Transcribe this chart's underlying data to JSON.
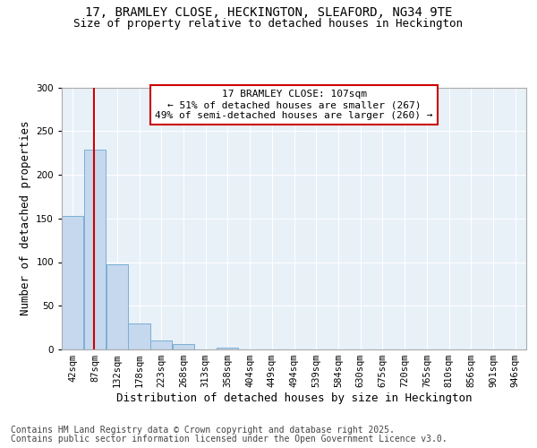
{
  "title_line1": "17, BRAMLEY CLOSE, HECKINGTON, SLEAFORD, NG34 9TE",
  "title_line2": "Size of property relative to detached houses in Heckington",
  "xlabel": "Distribution of detached houses by size in Heckington",
  "ylabel": "Number of detached properties",
  "bin_labels": [
    "42sqm",
    "87sqm",
    "132sqm",
    "178sqm",
    "223sqm",
    "268sqm",
    "313sqm",
    "358sqm",
    "404sqm",
    "449sqm",
    "494sqm",
    "539sqm",
    "584sqm",
    "630sqm",
    "675sqm",
    "720sqm",
    "765sqm",
    "810sqm",
    "856sqm",
    "901sqm",
    "946sqm"
  ],
  "bar_values": [
    153,
    229,
    97,
    30,
    10,
    6,
    0,
    2,
    0,
    0,
    0,
    0,
    0,
    0,
    0,
    0,
    0,
    0,
    0,
    0,
    0
  ],
  "bar_color": "#c5d8ee",
  "bar_edgecolor": "#7bafd4",
  "vline_x_bin": 1.45,
  "vline_color": "#cc0000",
  "annotation_text": "17 BRAMLEY CLOSE: 107sqm\n← 51% of detached houses are smaller (267)\n49% of semi-detached houses are larger (260) →",
  "annotation_box_edgecolor": "#cc0000",
  "annotation_box_facecolor": "#ffffff",
  "ylim": [
    0,
    300
  ],
  "yticks": [
    0,
    50,
    100,
    150,
    200,
    250,
    300
  ],
  "background_color": "#e8f0f8",
  "footer_line1": "Contains HM Land Registry data © Crown copyright and database right 2025.",
  "footer_line2": "Contains public sector information licensed under the Open Government Licence v3.0.",
  "title_fontsize": 10,
  "subtitle_fontsize": 9,
  "axis_label_fontsize": 9,
  "tick_fontsize": 7.5,
  "annotation_fontsize": 8,
  "footer_fontsize": 7
}
